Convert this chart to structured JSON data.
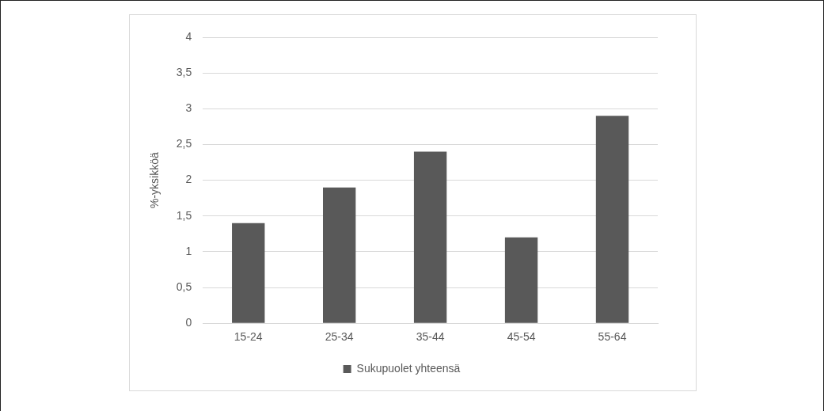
{
  "chart_data": {
    "type": "bar",
    "ylabel": "%-yksikköä",
    "categories": [
      "15-24",
      "25-34",
      "35-44",
      "45-54",
      "55-64"
    ],
    "series": [
      {
        "name": "Sukupuolet yhteensä",
        "color": "#595959",
        "values": [
          1.4,
          1.9,
          2.4,
          1.2,
          2.9
        ]
      }
    ],
    "ylim": [
      0,
      4
    ],
    "yticks": [
      0,
      {
        "value": 0.5,
        "label": "0,5"
      },
      1,
      {
        "value": 1.5,
        "label": "1,5"
      },
      2,
      {
        "value": 2.5,
        "label": "2,5"
      },
      3,
      {
        "value": 3.5,
        "label": "3,5"
      },
      4
    ],
    "grid": "y",
    "legend": "bottom"
  }
}
